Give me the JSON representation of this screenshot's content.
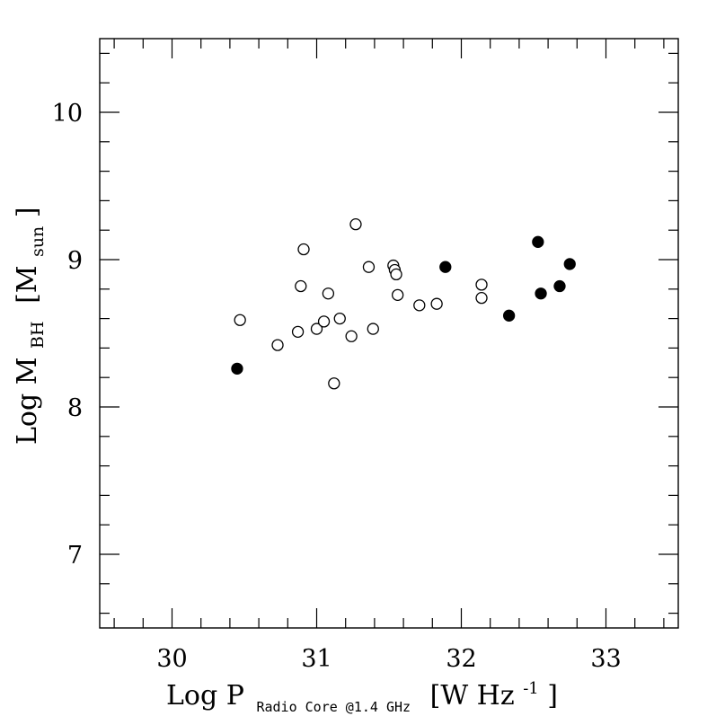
{
  "chart_data": {
    "type": "scatter",
    "xlim": [
      29.5,
      33.5
    ],
    "ylim": [
      6.5,
      10.5
    ],
    "x_ticks": [
      "30",
      "31",
      "32",
      "33"
    ],
    "y_ticks": [
      "7",
      "8",
      "9",
      "10"
    ],
    "xlabel": {
      "main": "Log P",
      "subscript": "Radio Core @1.4 GHz",
      "unit_left": "[W Hz",
      "unit_sup": "-1",
      "unit_right": "]"
    },
    "ylabel": {
      "main": "Log M",
      "subscript": "BH",
      "unit_left": "[M",
      "unit_sub": "sun",
      "unit_right": "]"
    },
    "grid": false,
    "legend": "none",
    "series": [
      {
        "marker": "open-circle",
        "color": "#000000",
        "points": [
          [
            30.47,
            8.59
          ],
          [
            30.73,
            8.42
          ],
          [
            30.87,
            8.51
          ],
          [
            30.89,
            8.82
          ],
          [
            30.91,
            9.07
          ],
          [
            31.0,
            8.53
          ],
          [
            31.05,
            8.58
          ],
          [
            31.08,
            8.77
          ],
          [
            31.12,
            8.16
          ],
          [
            31.16,
            8.6
          ],
          [
            31.24,
            8.48
          ],
          [
            31.27,
            9.24
          ],
          [
            31.36,
            8.95
          ],
          [
            31.39,
            8.53
          ],
          [
            31.53,
            8.96
          ],
          [
            31.54,
            8.93
          ],
          [
            31.55,
            8.9
          ],
          [
            31.56,
            8.76
          ],
          [
            31.71,
            8.69
          ],
          [
            31.83,
            8.7
          ],
          [
            32.14,
            8.83
          ],
          [
            32.14,
            8.74
          ]
        ]
      },
      {
        "marker": "filled-circle",
        "color": "#000000",
        "points": [
          [
            30.45,
            8.26
          ],
          [
            31.89,
            8.95
          ],
          [
            32.33,
            8.62
          ],
          [
            32.53,
            9.12
          ],
          [
            32.55,
            8.77
          ],
          [
            32.68,
            8.82
          ],
          [
            32.75,
            8.97
          ]
        ]
      }
    ]
  }
}
